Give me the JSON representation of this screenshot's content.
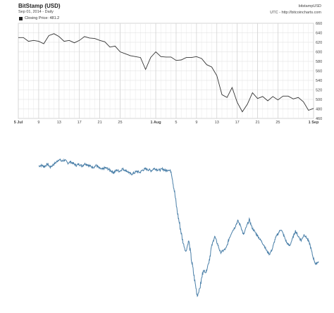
{
  "header": {
    "title": "BitStamp (USD)",
    "subtitle": "Sep 01, 2014 - Daily",
    "right_line1": "bitstampUSD",
    "right_line2": "UTC - http://bitcoincharts.com"
  },
  "legend": {
    "label": "Closing Price: 481.2"
  },
  "chart_data": [
    {
      "type": "line",
      "x_ticks": [
        {
          "label": "5 Jul",
          "bold": true,
          "day": 0
        },
        {
          "label": "9",
          "bold": false,
          "day": 4
        },
        {
          "label": "13",
          "bold": false,
          "day": 8
        },
        {
          "label": "17",
          "bold": false,
          "day": 12
        },
        {
          "label": "21",
          "bold": false,
          "day": 16
        },
        {
          "label": "25",
          "bold": false,
          "day": 20
        },
        {
          "label": "1 Aug",
          "bold": true,
          "day": 27
        },
        {
          "label": "5",
          "bold": false,
          "day": 31
        },
        {
          "label": "9",
          "bold": false,
          "day": 35
        },
        {
          "label": "13",
          "bold": false,
          "day": 39
        },
        {
          "label": "17",
          "bold": false,
          "day": 43
        },
        {
          "label": "21",
          "bold": false,
          "day": 47
        },
        {
          "label": "25",
          "bold": false,
          "day": 51
        },
        {
          "label": "1 Sep",
          "bold": true,
          "day": 58
        }
      ],
      "y_ticks": [
        460,
        480,
        500,
        520,
        540,
        560,
        580,
        600,
        620,
        640,
        660
      ],
      "ylim": [
        460,
        660
      ],
      "xlim": [
        0,
        58
      ],
      "grid": true,
      "series": [
        {
          "values": [
            630,
            630,
            622,
            624,
            622,
            617,
            634,
            638,
            632,
            622,
            624,
            619,
            624,
            632,
            629,
            628,
            624,
            621,
            610,
            612,
            600,
            596,
            592,
            590,
            588,
            563,
            588,
            600,
            590,
            589,
            589,
            582,
            583,
            588,
            588,
            590,
            586,
            573,
            568,
            550,
            510,
            504,
            525,
            494,
            474,
            490,
            514,
            502,
            506,
            497,
            506,
            499,
            507,
            507,
            501,
            504,
            495,
            477,
            481
          ]
        }
      ]
    },
    {
      "type": "line",
      "series": [
        {
          "values": [
            630,
            631,
            629,
            633,
            628,
            632,
            636,
            641,
            638,
            640,
            635,
            637,
            634,
            631,
            633,
            630,
            634,
            632,
            629,
            628,
            631,
            626,
            624,
            627,
            625,
            622,
            619,
            623,
            621,
            625,
            623,
            620,
            616,
            618,
            621,
            619,
            623,
            625,
            624,
            622,
            626,
            624,
            623,
            625,
            622,
            624,
            620,
            589,
            554,
            528,
            502,
            486,
            505,
            471,
            440,
            412,
            428,
            455,
            452,
            470,
            496,
            512,
            499,
            485,
            488,
            492,
            508,
            520,
            527,
            538,
            530,
            514,
            528,
            540,
            526,
            519,
            512,
            505,
            498,
            488,
            482,
            491,
            508,
            517,
            524,
            513,
            501,
            496,
            508,
            521,
            512,
            505,
            515,
            509,
            499,
            479,
            465,
            470
          ]
        }
      ],
      "ylim": [
        400,
        660
      ]
    }
  ]
}
